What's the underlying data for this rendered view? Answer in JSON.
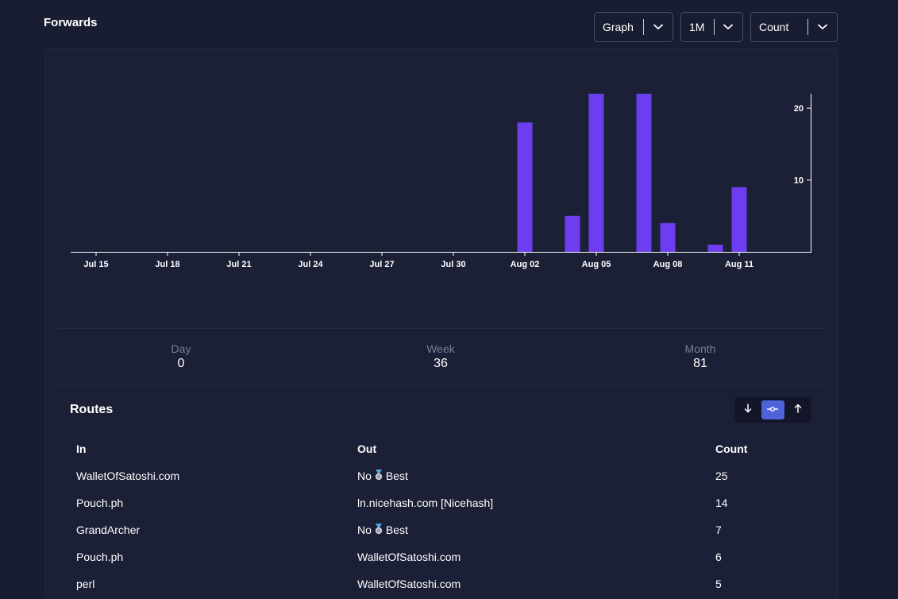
{
  "header": {
    "title": "Forwards",
    "graph_select": "Graph",
    "range_select": "1M",
    "metric_select": "Count"
  },
  "chart_data": {
    "type": "bar",
    "categories": [
      "Jul 15",
      "Jul 18",
      "Jul 21",
      "Jul 24",
      "Jul 27",
      "Jul 30",
      "Aug 02",
      "Aug 05",
      "Aug 08",
      "Aug 11"
    ],
    "bars": [
      {
        "date": "Aug 02",
        "value": 18
      },
      {
        "date": "Aug 04",
        "value": 5
      },
      {
        "date": "Aug 05",
        "value": 22
      },
      {
        "date": "Aug 07",
        "value": 22
      },
      {
        "date": "Aug 08",
        "value": 4
      },
      {
        "date": "Aug 10",
        "value": 1
      },
      {
        "date": "Aug 11",
        "value": 9
      }
    ],
    "y_ticks": [
      10,
      20
    ],
    "ylim": [
      0,
      22
    ],
    "bar_color": "#6d3ef0",
    "axis_color": "#ffffff",
    "title": "",
    "xlabel": "",
    "ylabel": ""
  },
  "stats": {
    "day": {
      "label": "Day",
      "value": "0"
    },
    "week": {
      "label": "Week",
      "value": "36"
    },
    "month": {
      "label": "Month",
      "value": "81"
    }
  },
  "routes": {
    "title": "Routes",
    "sort_buttons": [
      "arrow-down-icon",
      "route-icon",
      "arrow-up-icon"
    ],
    "active_sort": "route-icon",
    "headers": {
      "in": "In",
      "out": "Out",
      "count": "Count"
    },
    "rows": [
      {
        "in": "WalletOfSatoshi.com",
        "out_pre": "No",
        "out_icon": "medal-icon",
        "out_post": "Best",
        "count": "25"
      },
      {
        "in": "Pouch.ph",
        "out_pre": "ln.nicehash.com [Nicehash]",
        "out_icon": "",
        "out_post": "",
        "count": "14"
      },
      {
        "in": "GrandArcher",
        "out_pre": "No",
        "out_icon": "medal-icon",
        "out_post": "Best",
        "count": "7"
      },
      {
        "in": "Pouch.ph",
        "out_pre": "WalletOfSatoshi.com",
        "out_icon": "",
        "out_post": "",
        "count": "6"
      },
      {
        "in": "perl",
        "out_pre": "WalletOfSatoshi.com",
        "out_icon": "",
        "out_post": "",
        "count": "5"
      }
    ]
  },
  "colors": {
    "background": "#191d32",
    "card": "#1c2036",
    "accent": "#4f62d8",
    "bar": "#6d3ef0"
  }
}
